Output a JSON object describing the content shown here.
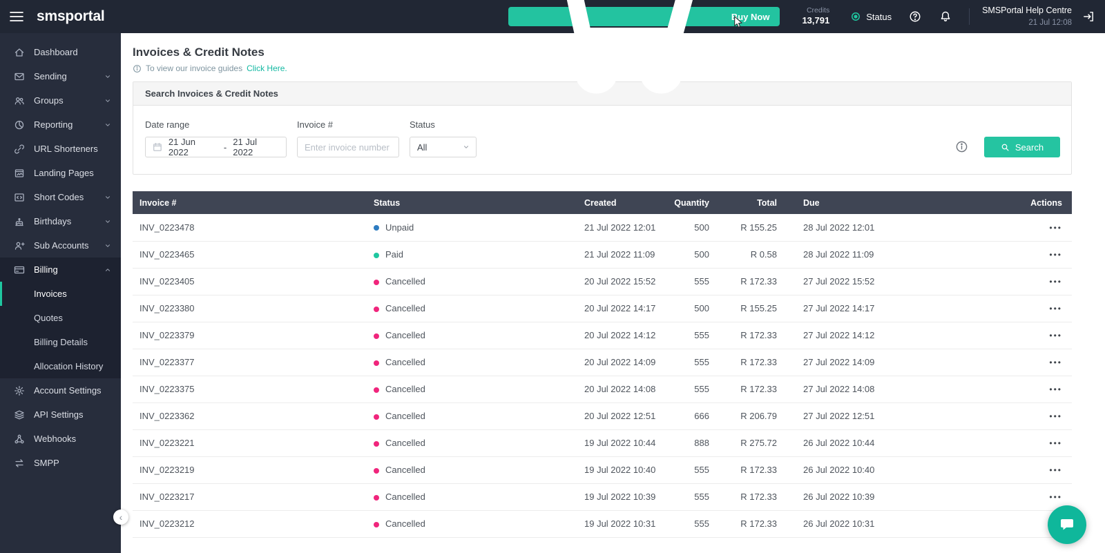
{
  "topbar": {
    "brand": "smsportal",
    "buy_now": "Buy Now",
    "credits_label": "Credits",
    "credits_value": "13,791",
    "status_label": "Status",
    "help_centre_name": "SMSPortal Help Centre",
    "help_centre_time": "21 Jul 12:08"
  },
  "sidebar": {
    "items": [
      {
        "label": "Dashboard",
        "icon": "home-icon"
      },
      {
        "label": "Sending",
        "icon": "envelope-icon",
        "chevron": "down"
      },
      {
        "label": "Groups",
        "icon": "users-icon",
        "chevron": "down"
      },
      {
        "label": "Reporting",
        "icon": "pie-chart-icon",
        "chevron": "down"
      },
      {
        "label": "URL Shorteners",
        "icon": "link-icon"
      },
      {
        "label": "Landing Pages",
        "icon": "landing-page-icon"
      },
      {
        "label": "Short Codes",
        "icon": "short-code-icon",
        "chevron": "down"
      },
      {
        "label": "Birthdays",
        "icon": "cake-icon",
        "chevron": "down"
      },
      {
        "label": "Sub Accounts",
        "icon": "sub-accounts-icon",
        "chevron": "down"
      }
    ],
    "billing": {
      "label": "Billing",
      "icon": "credit-card-icon",
      "chevron": "up",
      "subitems": [
        {
          "label": "Invoices",
          "active": true
        },
        {
          "label": "Quotes"
        },
        {
          "label": "Billing Details"
        },
        {
          "label": "Allocation History"
        }
      ]
    },
    "bottom_items": [
      {
        "label": "Account Settings",
        "icon": "gear-icon"
      },
      {
        "label": "API Settings",
        "icon": "api-icon"
      },
      {
        "label": "Webhooks",
        "icon": "webhook-icon"
      },
      {
        "label": "SMPP",
        "icon": "smpp-icon"
      }
    ]
  },
  "page": {
    "title": "Invoices & Credit Notes",
    "guide_text": "To view our invoice guides",
    "guide_link": "Click Here."
  },
  "search": {
    "panel_title": "Search Invoices & Credit Notes",
    "date_range_label": "Date range",
    "date_from": "21 Jun 2022",
    "date_separator": "-",
    "date_to": "21 Jul 2022",
    "invoice_label": "Invoice #",
    "invoice_placeholder": "Enter invoice number",
    "status_label": "Status",
    "status_value": "All",
    "search_button": "Search"
  },
  "table": {
    "columns": [
      "Invoice #",
      "Status",
      "Created",
      "Quantity",
      "Total",
      "Due",
      "Actions"
    ],
    "status_colors": {
      "Unpaid": "#2d7cc1",
      "Paid": "#1fc7a0",
      "Cancelled": "#f0257c"
    },
    "rows": [
      [
        "INV_0223478",
        "Unpaid",
        "21 Jul 2022 12:01",
        "500",
        "R 155.25",
        "28 Jul 2022 12:01"
      ],
      [
        "INV_0223465",
        "Paid",
        "21 Jul 2022 11:09",
        "500",
        "R 0.58",
        "28 Jul 2022 11:09"
      ],
      [
        "INV_0223405",
        "Cancelled",
        "20 Jul 2022 15:52",
        "555",
        "R 172.33",
        "27 Jul 2022 15:52"
      ],
      [
        "INV_0223380",
        "Cancelled",
        "20 Jul 2022 14:17",
        "500",
        "R 155.25",
        "27 Jul 2022 14:17"
      ],
      [
        "INV_0223379",
        "Cancelled",
        "20 Jul 2022 14:12",
        "555",
        "R 172.33",
        "27 Jul 2022 14:12"
      ],
      [
        "INV_0223377",
        "Cancelled",
        "20 Jul 2022 14:09",
        "555",
        "R 172.33",
        "27 Jul 2022 14:09"
      ],
      [
        "INV_0223375",
        "Cancelled",
        "20 Jul 2022 14:08",
        "555",
        "R 172.33",
        "27 Jul 2022 14:08"
      ],
      [
        "INV_0223362",
        "Cancelled",
        "20 Jul 2022 12:51",
        "666",
        "R 206.79",
        "27 Jul 2022 12:51"
      ],
      [
        "INV_0223221",
        "Cancelled",
        "19 Jul 2022 10:44",
        "888",
        "R 275.72",
        "26 Jul 2022 10:44"
      ],
      [
        "INV_0223219",
        "Cancelled",
        "19 Jul 2022 10:40",
        "555",
        "R 172.33",
        "26 Jul 2022 10:40"
      ],
      [
        "INV_0223217",
        "Cancelled",
        "19 Jul 2022 10:39",
        "555",
        "R 172.33",
        "26 Jul 2022 10:39"
      ],
      [
        "INV_0223212",
        "Cancelled",
        "19 Jul 2022 10:31",
        "555",
        "R 172.33",
        "26 Jul 2022 10:31"
      ]
    ]
  },
  "icons": {
    "hamburger-menu-icon": "three-bars",
    "cart-icon": "shopping-cart",
    "status-dot-icon": "teal-ring-dot",
    "help-icon": "circled-question-mark",
    "bell-icon": "notification-bell",
    "logout-icon": "exit-arrow",
    "calendar-icon": "calendar",
    "chevron-down-icon": "chevron-down",
    "search-icon": "magnifier",
    "info-icon": "circled-i",
    "chat-icon": "chat-bubble",
    "cursor-icon": "mouse-pointer"
  },
  "colors": {
    "accent": "#1fc7a0",
    "topbar_bg": "#212734",
    "sidebar_bg": "#272d3c",
    "sidebar_panel_bg": "#1d2230",
    "table_header_bg": "#3f4554"
  }
}
